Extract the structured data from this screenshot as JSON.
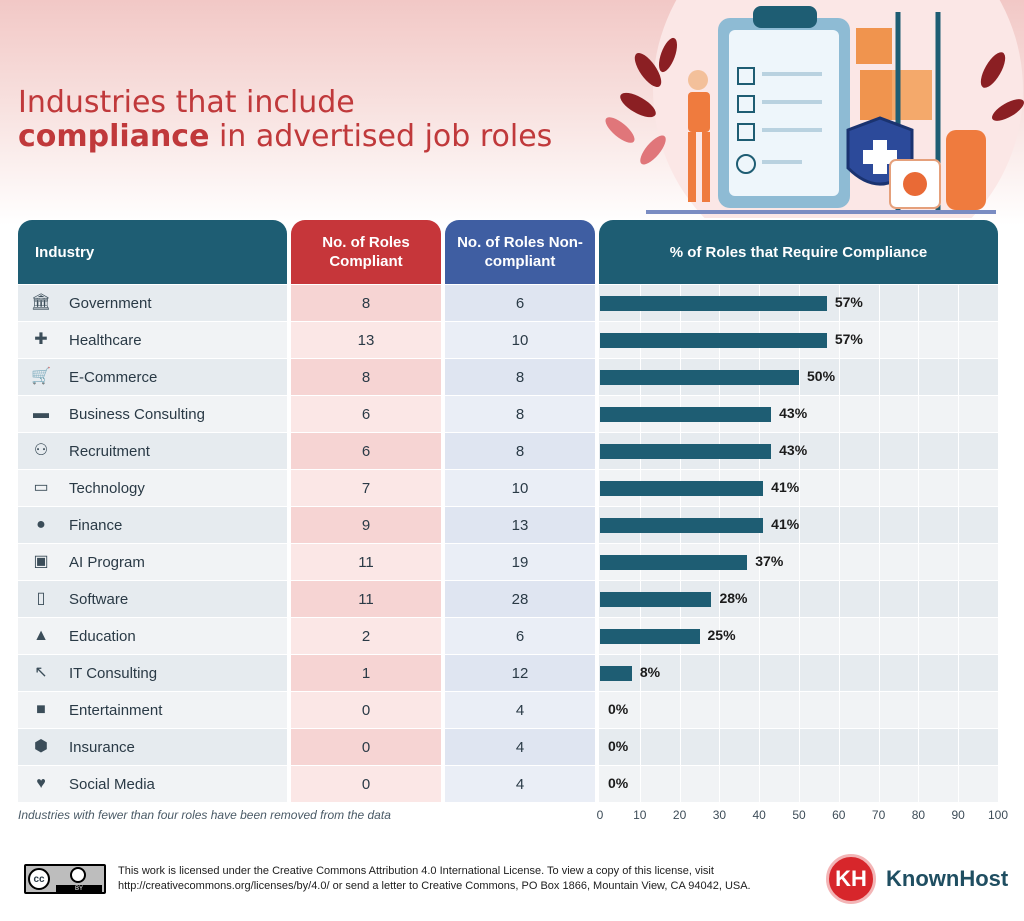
{
  "title": {
    "line1": "Industries that include",
    "line2_bold": "compliance",
    "line2_rest": " in advertised job roles"
  },
  "headers": {
    "industry": "Industry",
    "compliant": "No. of Roles Compliant",
    "noncompliant": "No. of Roles Non-compliant",
    "percent": "% of Roles that Require Compliance"
  },
  "chart_data": {
    "type": "bar",
    "orientation": "horizontal",
    "title": "% of Roles that Require Compliance",
    "categories": [
      "Government",
      "Healthcare",
      "E-Commerce",
      "Business Consulting",
      "Recruitment",
      "Technology",
      "Finance",
      "AI Program",
      "Software",
      "Education",
      "IT Consulting",
      "Entertainment",
      "Insurance",
      "Social Media"
    ],
    "compliant": [
      8,
      13,
      8,
      6,
      6,
      7,
      9,
      11,
      11,
      2,
      1,
      0,
      0,
      0
    ],
    "noncompliant": [
      6,
      10,
      8,
      8,
      8,
      10,
      13,
      19,
      28,
      6,
      12,
      4,
      4,
      4
    ],
    "values": [
      57,
      57,
      50,
      43,
      43,
      41,
      41,
      37,
      28,
      25,
      8,
      0,
      0,
      0
    ],
    "value_labels": [
      "57%",
      "57%",
      "50%",
      "43%",
      "43%",
      "41%",
      "41%",
      "37%",
      "28%",
      "25%",
      "8%",
      "0%",
      "0%",
      "0%"
    ],
    "icons": [
      "bank-icon",
      "medical-cross-icon",
      "cart-icon",
      "briefcase-icon",
      "people-icon",
      "monitor-icon",
      "piggy-bank-icon",
      "chip-icon",
      "phone-code-icon",
      "graduation-cap-icon",
      "cursor-click-icon",
      "camera-icon",
      "shield-icon",
      "chat-heart-icon"
    ],
    "xlim": [
      0,
      100
    ],
    "xticks": [
      0,
      10,
      20,
      30,
      40,
      50,
      60,
      70,
      80,
      90,
      100
    ],
    "grid": true,
    "colors": {
      "bar": "#1e5d73",
      "compliant_bg": "#f6dedd",
      "noncompliant_bg": "#e1e6f1"
    }
  },
  "footnote": "Industries with fewer than four roles have been removed from the data",
  "license": "This work is licensed under the Creative Commons Attribution 4.0 International License. To view a copy of this license, visit http://creativecommons.org/licenses/by/4.0/ or send a letter to Creative Commons, PO Box 1866, Mountain View, CA 94042, USA.",
  "cc_badge": {
    "main": "cc",
    "by": "BY"
  },
  "brand": {
    "logo": "KH",
    "name": "KnownHost"
  }
}
